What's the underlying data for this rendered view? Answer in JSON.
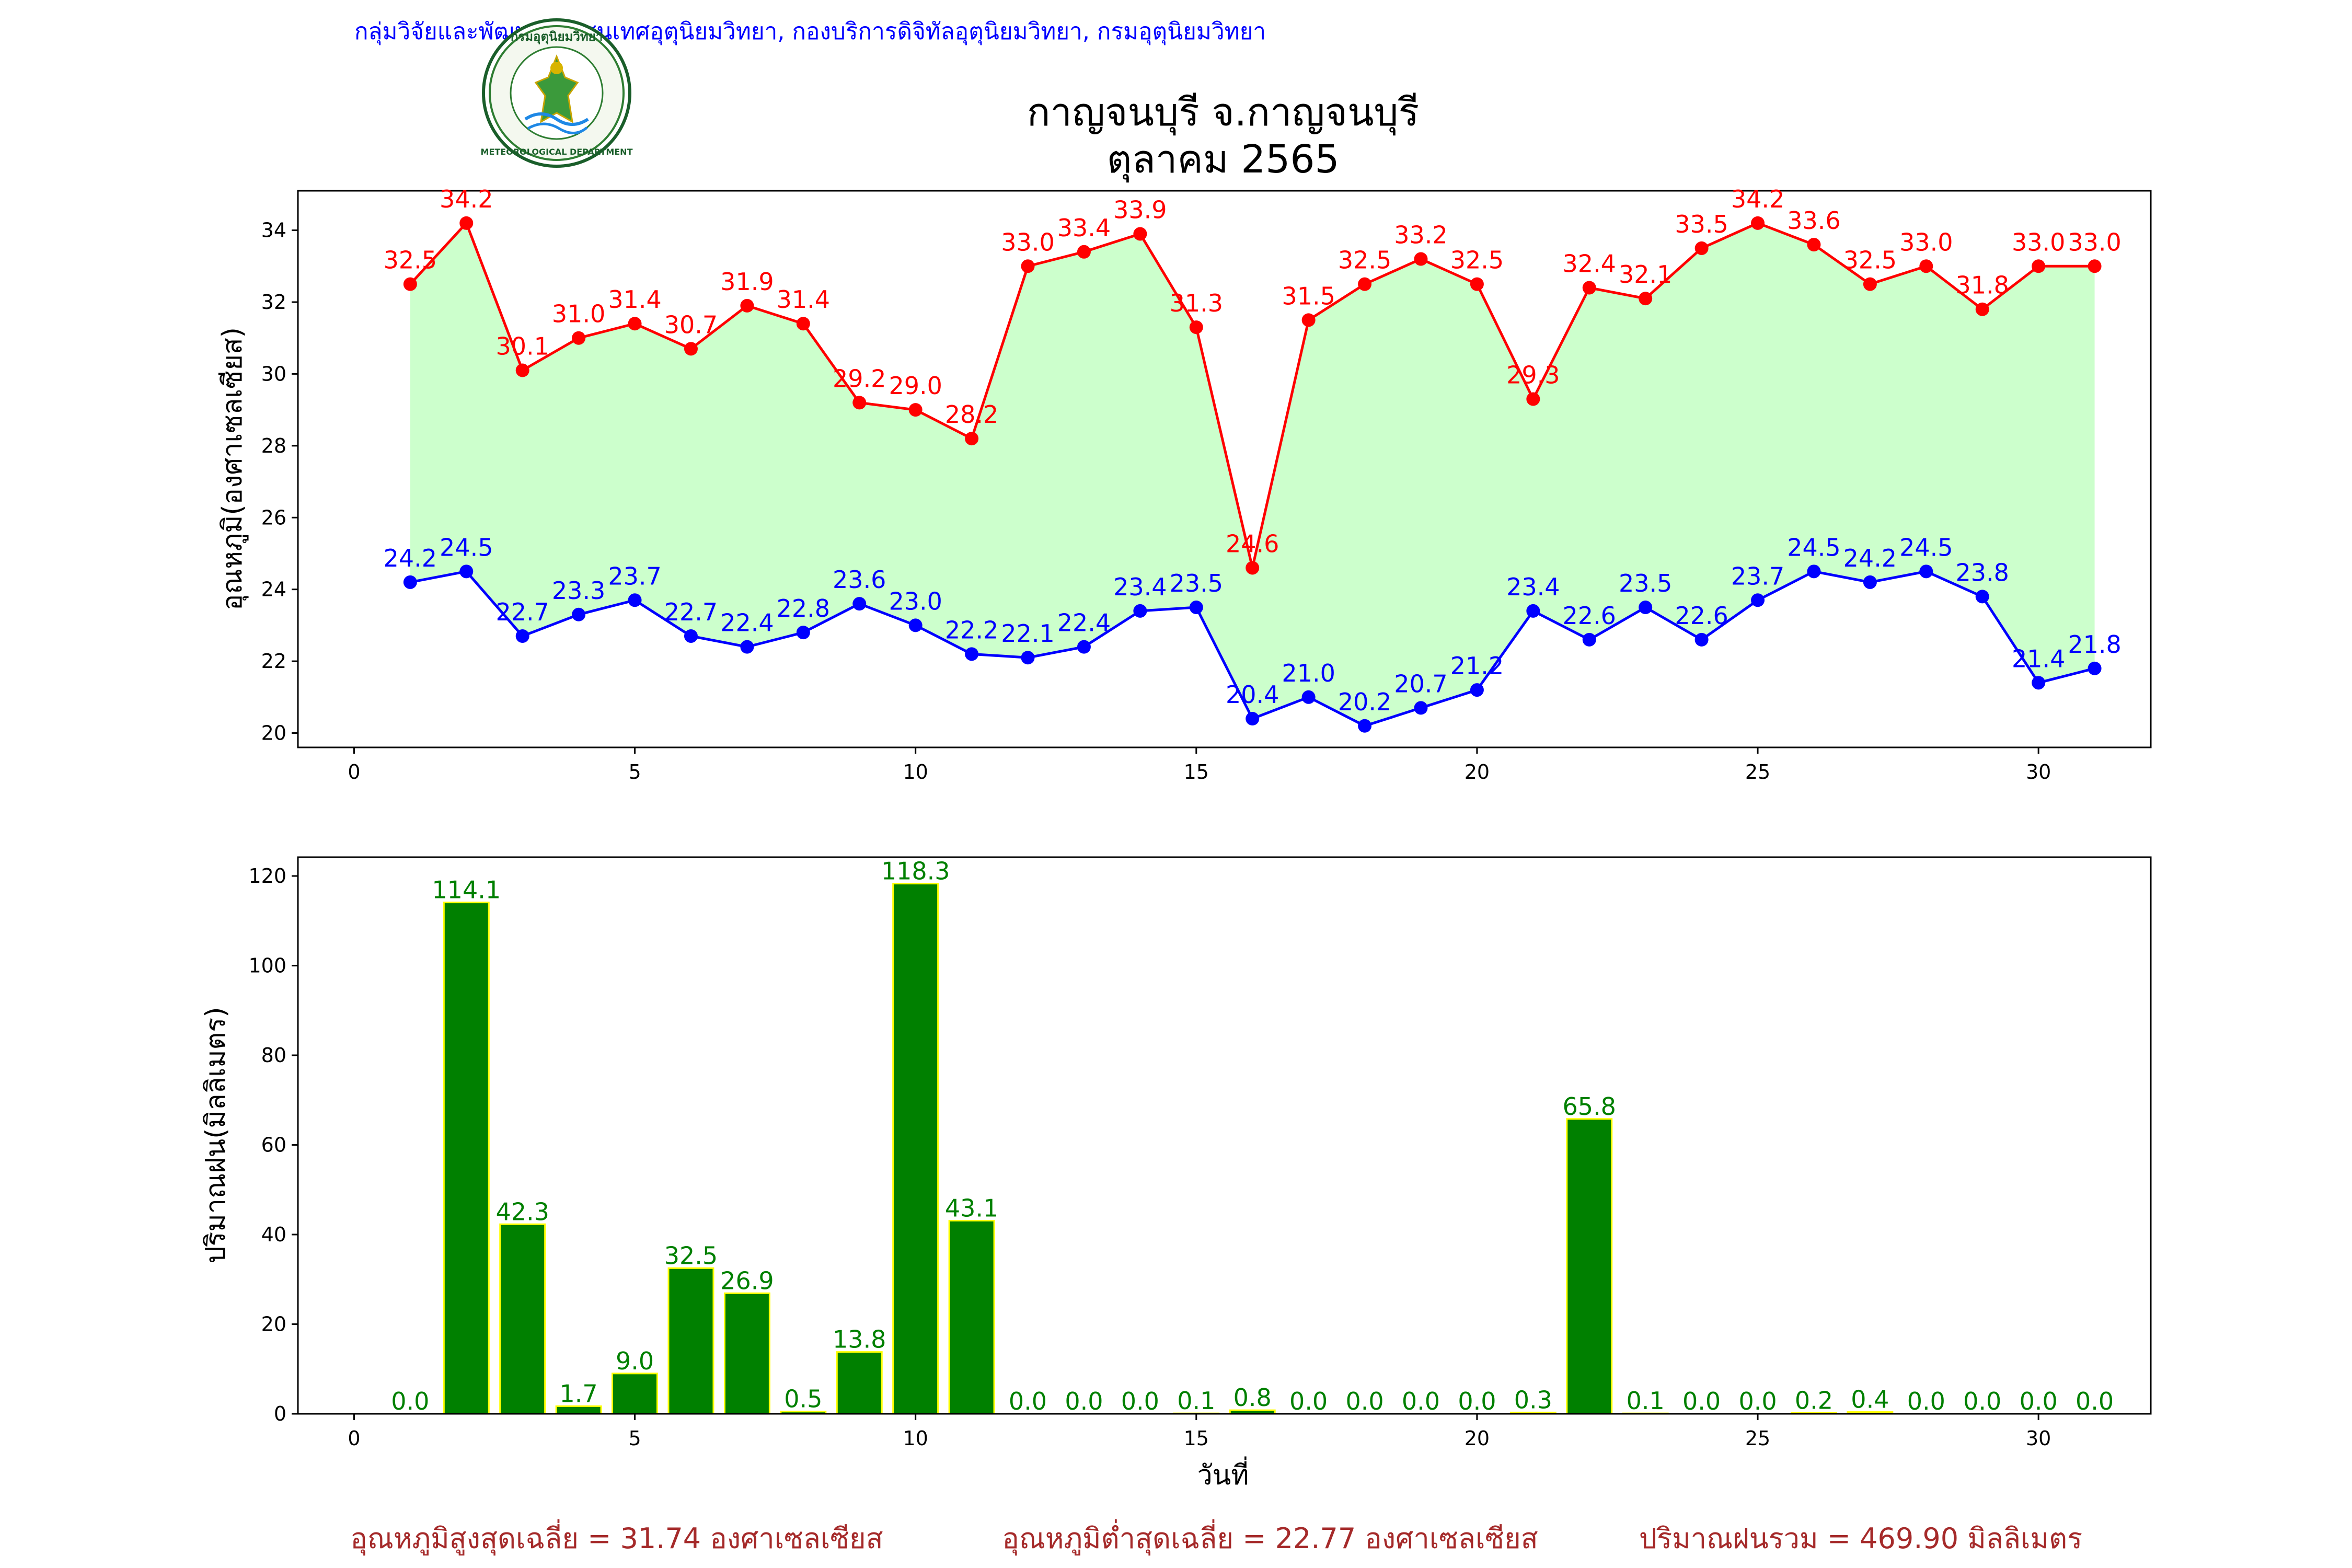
{
  "header": {
    "org_line": "กลุ่มวิจัยและพัฒนาสารสนเทศอุตุนิยมวิทยา, กองบริการดิจิทัลอุตุนิยมวิทยา, กรมอุตุนิยมวิทยา",
    "logo_text_top": "กรมอุตุนิยมวิทยา",
    "logo_text_bottom": "METEOROLOGICAL DEPARTMENT"
  },
  "title": {
    "line1": "กาญจนบุรี จ.กาญจนบุรี",
    "line2": "ตุลาคม 2565"
  },
  "colors": {
    "max_line": "#ff0000",
    "min_line": "#0000ff",
    "fill": "#ccffcc",
    "bar_fill": "#008000",
    "bar_edge": "#ffff00",
    "footer": "#a52a2a"
  },
  "chart_data": [
    {
      "type": "line",
      "ylabel": "อุณหภูมิ(องศาเซลเซียส)",
      "xlim": [
        -1,
        32
      ],
      "ylim": [
        19.6,
        35.1
      ],
      "xticks": [
        0,
        5,
        10,
        15,
        20,
        25,
        30
      ],
      "yticks": [
        20,
        22,
        24,
        26,
        28,
        30,
        32,
        34
      ],
      "x": [
        1,
        2,
        3,
        4,
        5,
        6,
        7,
        8,
        9,
        10,
        11,
        12,
        13,
        14,
        15,
        16,
        17,
        18,
        19,
        20,
        21,
        22,
        23,
        24,
        25,
        26,
        27,
        28,
        29,
        30,
        31
      ],
      "series": [
        {
          "key": "max",
          "values": [
            32.5,
            34.2,
            30.1,
            31.0,
            31.4,
            30.7,
            31.9,
            31.4,
            29.2,
            29.0,
            28.2,
            33.0,
            33.4,
            33.9,
            31.3,
            24.6,
            31.5,
            32.5,
            33.2,
            32.5,
            29.3,
            32.4,
            32.1,
            33.5,
            34.2,
            33.6,
            32.5,
            33.0,
            31.8,
            33.0,
            33.0
          ]
        },
        {
          "key": "min",
          "values": [
            24.2,
            24.5,
            22.7,
            23.3,
            23.7,
            22.7,
            22.4,
            22.8,
            23.6,
            23.0,
            22.2,
            22.1,
            22.4,
            23.4,
            23.5,
            20.4,
            21.0,
            20.2,
            20.7,
            21.2,
            23.4,
            22.6,
            23.5,
            22.6,
            23.7,
            24.5,
            24.2,
            24.5,
            23.8,
            21.4,
            21.8
          ]
        }
      ]
    },
    {
      "type": "bar",
      "ylabel": "ปริมาณฝน(มิลลิเมตร)",
      "xlabel": "วันที่",
      "xlim": [
        -1,
        32
      ],
      "ylim": [
        0,
        124.2
      ],
      "xticks": [
        0,
        5,
        10,
        15,
        20,
        25,
        30
      ],
      "yticks": [
        0,
        20,
        40,
        60,
        80,
        100,
        120
      ],
      "x": [
        1,
        2,
        3,
        4,
        5,
        6,
        7,
        8,
        9,
        10,
        11,
        12,
        13,
        14,
        15,
        16,
        17,
        18,
        19,
        20,
        21,
        22,
        23,
        24,
        25,
        26,
        27,
        28,
        29,
        30,
        31
      ],
      "values": [
        0.0,
        114.1,
        42.3,
        1.7,
        9.0,
        32.5,
        26.9,
        0.5,
        13.8,
        118.3,
        43.1,
        0.0,
        0.0,
        0.0,
        0.1,
        0.8,
        0.0,
        0.0,
        0.0,
        0.0,
        0.3,
        65.8,
        0.1,
        0.0,
        0.0,
        0.2,
        0.4,
        0.0,
        0.0,
        0.0,
        0.0
      ]
    }
  ],
  "footer": {
    "avg_max": "อุณหภูมิสูงสุดเฉลี่ย = 31.74 องศาเซลเซียส",
    "avg_min": "อุณหภูมิต่ำสุดเฉลี่ย = 22.77 องศาเซลเซียส",
    "total_rain": "ปริมาณฝนรวม = 469.90 มิลลิเมตร"
  }
}
